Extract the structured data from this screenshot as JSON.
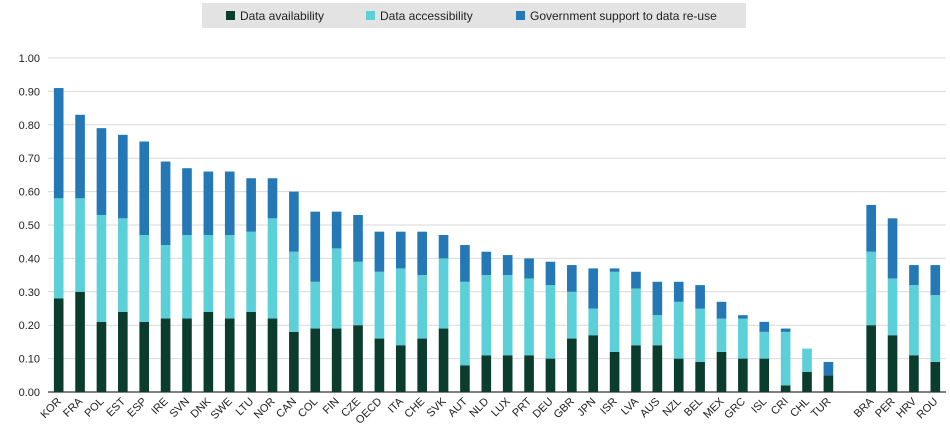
{
  "chart_data": {
    "type": "bar",
    "stacked": true,
    "legend": {
      "position": "top",
      "entries": [
        "Data availability",
        "Data accessibility",
        "Government support to data re-use"
      ]
    },
    "yaxis": {
      "ylim": [
        0,
        1
      ],
      "ticks": [
        "0.00",
        "0.10",
        "0.20",
        "0.30",
        "0.40",
        "0.50",
        "0.60",
        "0.70",
        "0.80",
        "0.90",
        "1.00"
      ],
      "tick_values": [
        0,
        0.1,
        0.2,
        0.3,
        0.4,
        0.5,
        0.6,
        0.7,
        0.8,
        0.9,
        1.0
      ]
    },
    "grid": true,
    "colors": [
      "#0b3d2e",
      "#5cd0d8",
      "#2378b5"
    ],
    "categories": [
      "KOR",
      "FRA",
      "POL",
      "EST",
      "ESP",
      "IRE",
      "SVN",
      "DNK",
      "SWE",
      "LTU",
      "NOR",
      "CAN",
      "COL",
      "FIN",
      "CZE",
      "OECD",
      "ITA",
      "CHE",
      "SVK",
      "AUT",
      "NLD",
      "LUX",
      "PRT",
      "DEU",
      "GBR",
      "JPN",
      "ISR",
      "LVA",
      "AUS",
      "NZL",
      "BEL",
      "MEX",
      "GRC",
      "ISL",
      "CRI",
      "CHL",
      "TUR",
      "",
      "BRA",
      "PER",
      "HRV",
      "ROU"
    ],
    "series": [
      {
        "name": "Data availability",
        "values": [
          0.28,
          0.3,
          0.21,
          0.24,
          0.21,
          0.22,
          0.22,
          0.24,
          0.22,
          0.24,
          0.22,
          0.18,
          0.19,
          0.19,
          0.2,
          0.16,
          0.14,
          0.16,
          0.19,
          0.08,
          0.11,
          0.11,
          0.11,
          0.1,
          0.16,
          0.17,
          0.12,
          0.14,
          0.14,
          0.1,
          0.09,
          0.12,
          0.1,
          0.1,
          0.02,
          0.06,
          0.05,
          null,
          0.2,
          0.17,
          0.11,
          0.09
        ]
      },
      {
        "name": "Data accessibility",
        "values": [
          0.3,
          0.28,
          0.32,
          0.28,
          0.26,
          0.22,
          0.25,
          0.23,
          0.25,
          0.24,
          0.3,
          0.24,
          0.14,
          0.24,
          0.19,
          0.2,
          0.23,
          0.19,
          0.21,
          0.25,
          0.24,
          0.24,
          0.23,
          0.22,
          0.14,
          0.08,
          0.24,
          0.17,
          0.09,
          0.17,
          0.16,
          0.1,
          0.12,
          0.08,
          0.16,
          0.07,
          0.0,
          null,
          0.22,
          0.17,
          0.21,
          0.2
        ]
      },
      {
        "name": "Government support to data re-use",
        "values": [
          0.33,
          0.25,
          0.26,
          0.25,
          0.28,
          0.25,
          0.2,
          0.19,
          0.19,
          0.16,
          0.12,
          0.18,
          0.21,
          0.11,
          0.14,
          0.12,
          0.11,
          0.13,
          0.07,
          0.11,
          0.07,
          0.06,
          0.06,
          0.07,
          0.08,
          0.12,
          0.01,
          0.05,
          0.1,
          0.06,
          0.07,
          0.05,
          0.01,
          0.03,
          0.01,
          0.0,
          0.04,
          null,
          0.14,
          0.18,
          0.06,
          0.09
        ]
      }
    ]
  }
}
